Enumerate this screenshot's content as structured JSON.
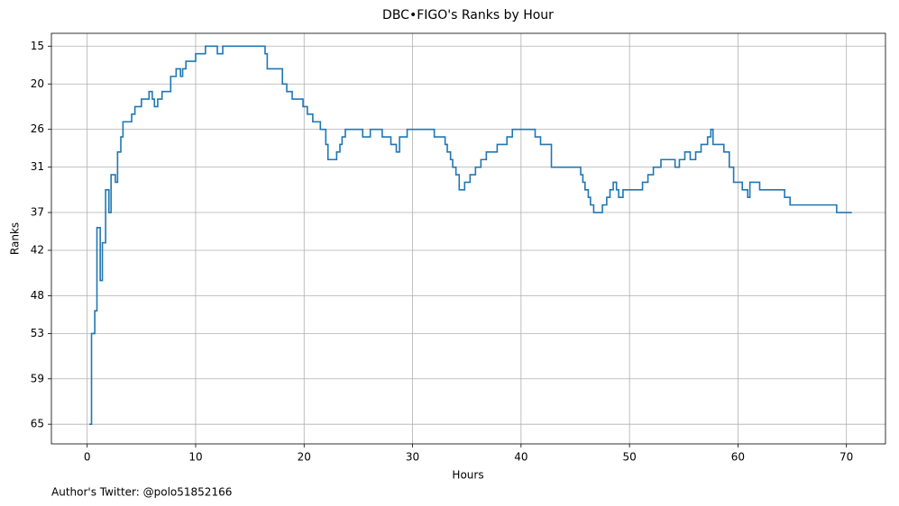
{
  "chart_data": {
    "type": "line",
    "drawstyle": "steps-post",
    "title": "DBC•FIGO's Ranks by Hour",
    "xlabel": "Hours",
    "ylabel": "Ranks",
    "footnote": "Author's Twitter: @polo51852166",
    "xlim": [
      -3.3,
      73.6
    ],
    "xticks": [
      0,
      10,
      20,
      30,
      40,
      50,
      60,
      70
    ],
    "ylim": [
      67.6,
      13.3
    ],
    "yticks": [
      15,
      20,
      26,
      31,
      37,
      42,
      48,
      53,
      59,
      65
    ],
    "grid": true,
    "x": [
      0.2,
      0.4,
      0.7,
      0.9,
      1.2,
      1.4,
      1.7,
      2.0,
      2.2,
      2.6,
      2.8,
      3.1,
      3.3,
      4.1,
      4.4,
      5.0,
      5.7,
      6.0,
      6.2,
      6.5,
      6.9,
      7.7,
      8.2,
      8.6,
      8.8,
      9.1,
      10.0,
      10.9,
      12.0,
      12.5,
      16.4,
      16.6,
      18.0,
      18.4,
      18.9,
      19.9,
      20.3,
      20.8,
      21.5,
      22.0,
      22.2,
      23.0,
      23.3,
      23.5,
      23.8,
      25.4,
      26.1,
      27.2,
      28.0,
      28.5,
      28.8,
      29.5,
      32.0,
      33.0,
      33.2,
      33.5,
      33.7,
      34.0,
      34.3,
      34.8,
      35.3,
      35.8,
      36.3,
      36.8,
      37.8,
      38.7,
      39.2,
      41.3,
      41.8,
      42.8,
      45.5,
      45.7,
      45.9,
      46.2,
      46.4,
      46.7,
      47.5,
      47.9,
      48.2,
      48.5,
      48.8,
      49.0,
      49.4,
      51.2,
      51.7,
      52.2,
      52.9,
      54.2,
      54.6,
      55.1,
      55.6,
      56.1,
      56.6,
      57.2,
      57.5,
      57.7,
      58.7,
      59.2,
      59.6,
      60.4,
      60.9,
      61.1,
      62.0,
      64.3,
      64.8,
      69.1,
      70.5
    ],
    "series": [
      {
        "name": "Ranks",
        "color": "#1f77b4",
        "values": [
          65,
          53,
          50,
          39,
          46,
          41,
          34,
          37,
          32,
          33,
          29,
          27,
          25,
          24,
          23,
          22,
          21,
          22,
          23,
          22,
          21,
          19,
          18,
          19,
          18,
          17,
          16,
          15,
          16,
          15,
          16,
          18,
          20,
          21,
          22,
          23,
          24,
          25,
          26,
          28,
          30,
          29,
          28,
          27,
          26,
          27,
          26,
          27,
          28,
          29,
          27,
          26,
          27,
          28,
          29,
          30,
          31,
          32,
          34,
          33,
          32,
          31,
          30,
          29,
          28,
          27,
          26,
          27,
          28,
          31,
          32,
          33,
          34,
          35,
          36,
          37,
          36,
          35,
          34,
          33,
          34,
          35,
          34,
          33,
          32,
          31,
          30,
          31,
          30,
          29,
          30,
          29,
          28,
          27,
          26,
          28,
          29,
          31,
          33,
          34,
          35,
          33,
          34,
          35,
          36,
          37,
          37
        ]
      }
    ]
  }
}
